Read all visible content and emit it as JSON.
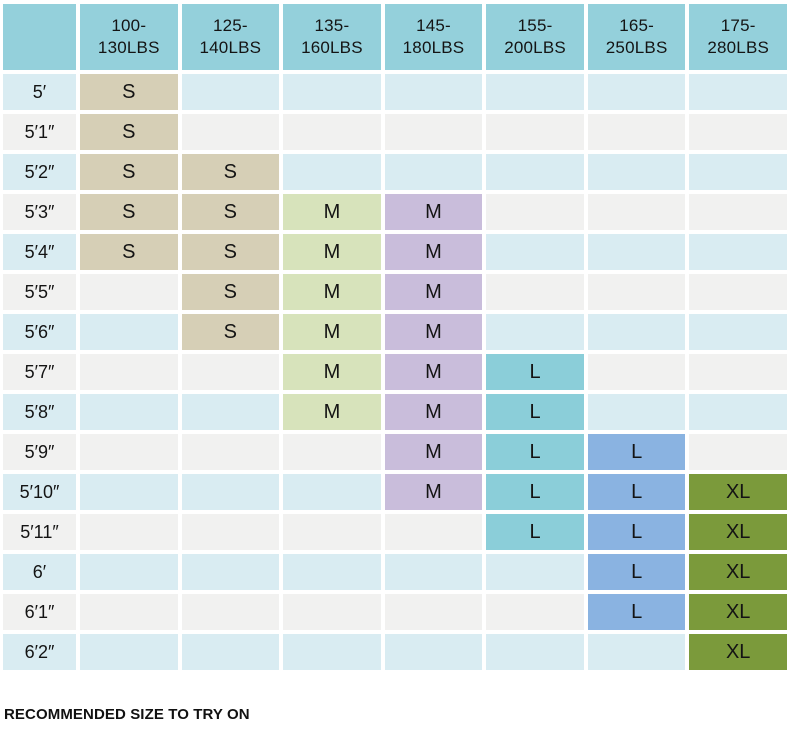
{
  "caption": "RECOMMENDED SIZE TO TRY ON",
  "colors": {
    "background": "#ffffff",
    "header_bg": "#94d0db",
    "row_bg_blue": "#d9ecf2",
    "row_bg_gray": "#f1f1f0",
    "text": "#141414",
    "size_s_tan": "#d6cfb6",
    "size_m_green": "#d7e3bb",
    "size_m_purple": "#c9bddb",
    "size_l_teal": "#8bced9",
    "size_l_blue": "#8ab3e1",
    "size_xl_olive": "#7b9a3b"
  },
  "table": {
    "corner_label": "",
    "columns": [
      {
        "line1": "100-",
        "line2": "130LBS"
      },
      {
        "line1": "125-",
        "line2": "140LBS"
      },
      {
        "line1": "135-",
        "line2": "160LBS"
      },
      {
        "line1": "145-",
        "line2": "180LBS"
      },
      {
        "line1": "155-",
        "line2": "200LBS"
      },
      {
        "line1": "165-",
        "line2": "250LBS"
      },
      {
        "line1": "175-",
        "line2": "280LBS"
      }
    ],
    "column_fill_colors": [
      "size_s_tan",
      "size_s_tan",
      "size_m_green",
      "size_m_purple",
      "size_l_teal",
      "size_l_blue",
      "size_xl_olive"
    ],
    "rows": [
      {
        "height": "5′",
        "row_bg": "blue",
        "cells": [
          "S",
          "",
          "",
          "",
          "",
          "",
          ""
        ]
      },
      {
        "height": "5′1″",
        "row_bg": "gray",
        "cells": [
          "S",
          "",
          "",
          "",
          "",
          "",
          ""
        ]
      },
      {
        "height": "5′2″",
        "row_bg": "blue",
        "cells": [
          "S",
          "S",
          "",
          "",
          "",
          "",
          ""
        ]
      },
      {
        "height": "5′3″",
        "row_bg": "gray",
        "cells": [
          "S",
          "S",
          "M",
          "M",
          "",
          "",
          ""
        ]
      },
      {
        "height": "5′4″",
        "row_bg": "blue",
        "cells": [
          "S",
          "S",
          "M",
          "M",
          "",
          "",
          ""
        ]
      },
      {
        "height": "5′5″",
        "row_bg": "gray",
        "cells": [
          "",
          "S",
          "M",
          "M",
          "",
          "",
          ""
        ]
      },
      {
        "height": "5′6″",
        "row_bg": "blue",
        "cells": [
          "",
          "S",
          "M",
          "M",
          "",
          "",
          ""
        ]
      },
      {
        "height": "5′7″",
        "row_bg": "gray",
        "cells": [
          "",
          "",
          "M",
          "M",
          "L",
          "",
          ""
        ]
      },
      {
        "height": "5′8″",
        "row_bg": "blue",
        "cells": [
          "",
          "",
          "M",
          "M",
          "L",
          "",
          ""
        ]
      },
      {
        "height": "5′9″",
        "row_bg": "gray",
        "cells": [
          "",
          "",
          "",
          "M",
          "L",
          "L",
          ""
        ]
      },
      {
        "height": "5′10″",
        "row_bg": "blue",
        "cells": [
          "",
          "",
          "",
          "M",
          "L",
          "L",
          "XL"
        ]
      },
      {
        "height": "5′11″",
        "row_bg": "gray",
        "cells": [
          "",
          "",
          "",
          "",
          "L",
          "L",
          "XL"
        ]
      },
      {
        "height": "6′",
        "row_bg": "blue",
        "cells": [
          "",
          "",
          "",
          "",
          "",
          "L",
          "XL"
        ]
      },
      {
        "height": "6′1″",
        "row_bg": "gray",
        "cells": [
          "",
          "",
          "",
          "",
          "",
          "L",
          "XL"
        ]
      },
      {
        "height": "6′2″",
        "row_bg": "blue",
        "cells": [
          "",
          "",
          "",
          "",
          "",
          "",
          "XL"
        ]
      }
    ]
  },
  "chart_data": {
    "type": "table",
    "title": "",
    "caption": "RECOMMENDED SIZE TO TRY ON",
    "columns": [
      "100-130LBS",
      "125-140LBS",
      "135-160LBS",
      "145-180LBS",
      "155-200LBS",
      "165-250LBS",
      "175-280LBS"
    ],
    "row_labels": [
      "5′",
      "5′1″",
      "5′2″",
      "5′3″",
      "5′4″",
      "5′5″",
      "5′6″",
      "5′7″",
      "5′8″",
      "5′9″",
      "5′10″",
      "5′11″",
      "6′",
      "6′1″",
      "6′2″"
    ],
    "cell_values": [
      [
        "S",
        "",
        "",
        "",
        "",
        "",
        ""
      ],
      [
        "S",
        "",
        "",
        "",
        "",
        "",
        ""
      ],
      [
        "S",
        "S",
        "",
        "",
        "",
        "",
        ""
      ],
      [
        "S",
        "S",
        "M",
        "M",
        "",
        "",
        ""
      ],
      [
        "S",
        "S",
        "M",
        "M",
        "",
        "",
        ""
      ],
      [
        "",
        "S",
        "M",
        "M",
        "",
        "",
        ""
      ],
      [
        "",
        "S",
        "M",
        "M",
        "",
        "",
        ""
      ],
      [
        "",
        "",
        "M",
        "M",
        "L",
        "",
        ""
      ],
      [
        "",
        "",
        "M",
        "M",
        "L",
        "",
        ""
      ],
      [
        "",
        "",
        "",
        "M",
        "L",
        "L",
        ""
      ],
      [
        "",
        "",
        "",
        "M",
        "L",
        "L",
        "XL"
      ],
      [
        "",
        "",
        "",
        "",
        "L",
        "L",
        "XL"
      ],
      [
        "",
        "",
        "",
        "",
        "",
        "L",
        "XL"
      ],
      [
        "",
        "",
        "",
        "",
        "",
        "L",
        "XL"
      ],
      [
        "",
        "",
        "",
        "",
        "",
        "",
        "XL"
      ]
    ]
  }
}
